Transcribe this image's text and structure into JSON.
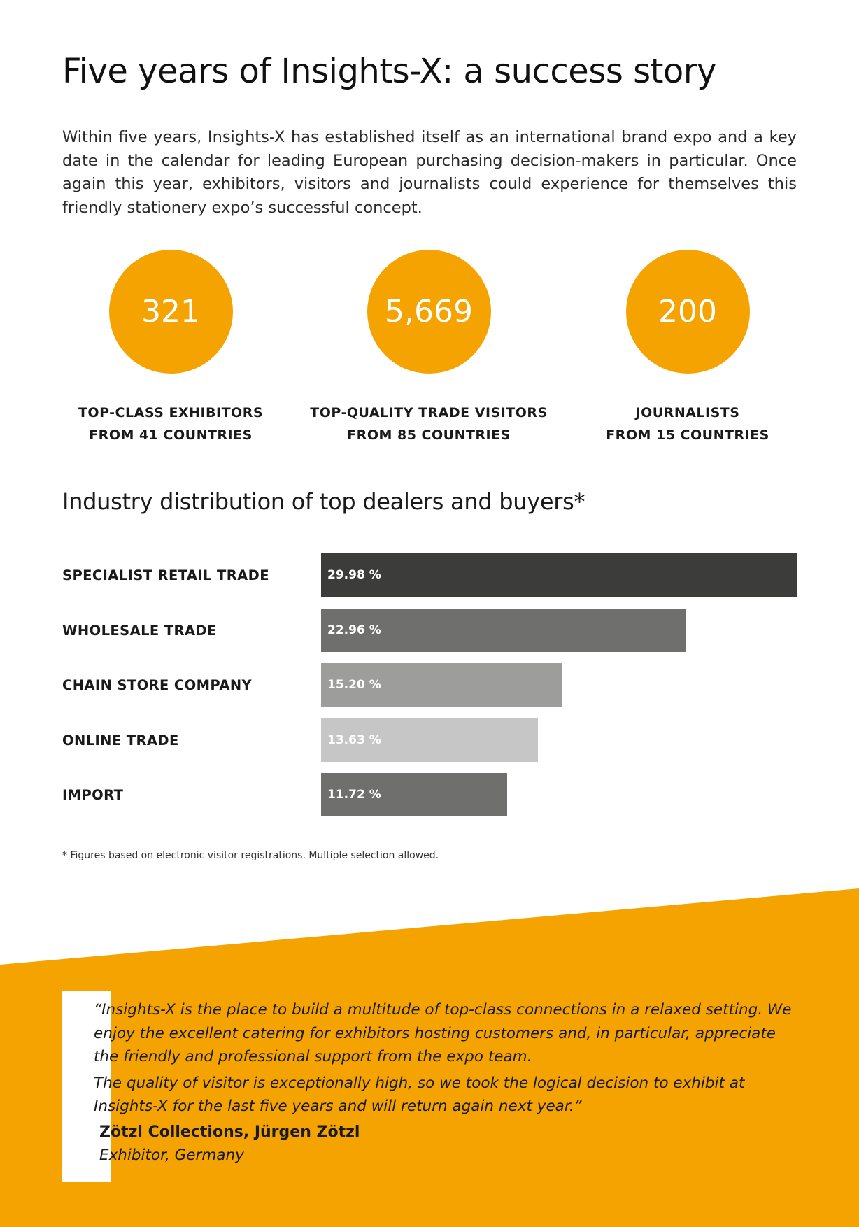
{
  "title": "Five years of Insights-X: a success story",
  "intro": "Within five years, Insights-X has established itself as an international brand expo and a key date in the calendar for leading European purchasing decision-makers in particular. Once again this year, exhibitors, visitors and journalists could experience for themselves this friendly stationery expo’s successful concept.",
  "stats": [
    {
      "value": "321",
      "line1": "TOP-CLASS EXHIBITORS",
      "line2": "FROM 41 COUNTRIES"
    },
    {
      "value": "5,669",
      "line1": "TOP-QUALITY TRADE VISITORS",
      "line2": "FROM 85 COUNTRIES"
    },
    {
      "value": "200",
      "line1": "JOURNALISTS",
      "line2": "FROM 15 COUNTRIES"
    }
  ],
  "colors": {
    "accent": "#f5a300",
    "bar_dark": "#3c3c3b",
    "bar_mid": "#6f6f6e",
    "bar_light": "#9d9d9c",
    "bar_lighter": "#c6c6c6"
  },
  "chart_data": {
    "type": "bar",
    "orientation": "horizontal",
    "title": "Industry distribution of top dealers and buyers*",
    "categories": [
      "SPECIALIST RETAIL TRADE",
      "WHOLESALE TRADE",
      "CHAIN STORE COMPANY",
      "ONLINE TRADE",
      "IMPORT"
    ],
    "values": [
      29.98,
      22.96,
      15.2,
      13.63,
      11.72
    ],
    "value_labels": [
      "29.98 %",
      "22.96 %",
      "15.20 %",
      "13.63 %",
      "11.72 %"
    ],
    "bar_colors": [
      "#3c3c3b",
      "#6f6f6e",
      "#9d9d9c",
      "#c6c6c6",
      "#6f6f6e"
    ],
    "xlim": [
      0,
      29.98
    ],
    "grid": false,
    "legend": "none"
  },
  "footnote": "* Figures based on electronic visitor registrations. Multiple selection allowed.",
  "quote": {
    "paragraph1": "“Insights-X is the place to build a multitude of top-class connections in a relaxed setting. We enjoy the excellent catering for exhibitors hosting customers and, in particular, appreciate the friendly and professional support from the expo team.",
    "paragraph2": "The quality of visitor is exceptionally high, so we took the logical decision to exhibit at Insights-X for the last five years and will return again next year.”",
    "author": "Zötzl Collections, Jürgen Zötzl",
    "role": "Exhibitor, Germany"
  }
}
